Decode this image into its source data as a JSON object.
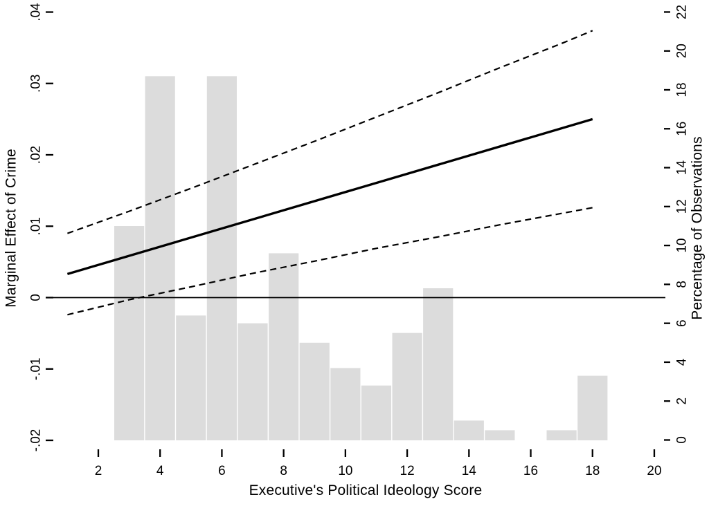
{
  "figure": {
    "background": "#ffffff",
    "bar_color": "#dcdcdc",
    "line_color": "#000000",
    "text_color": "#000000"
  },
  "chart_data": {
    "type": "line",
    "title": "",
    "xlabel": "Executive's Political Ideology Score",
    "ylabel_left": "Marginal Effect of Crime",
    "ylabel_right": "Percentage of Observations",
    "legend": "none",
    "grid": "off",
    "x_axis": {
      "tick_values": [
        2,
        4,
        6,
        8,
        10,
        12,
        14,
        16,
        18,
        20
      ],
      "tick_labels": [
        "2",
        "4",
        "6",
        "8",
        "10",
        "12",
        "14",
        "16",
        "18",
        "20"
      ],
      "range": [
        0.85,
        20.45
      ]
    },
    "y_axis_left": {
      "tick_values": [
        0.04,
        0.03,
        0.02,
        0.01,
        0,
        -0.01,
        -0.02
      ],
      "tick_labels": [
        ".04",
        ".03",
        ".02",
        ".01",
        "0",
        "-.01",
        "-.02"
      ],
      "range": [
        -0.0206,
        0.0401
      ]
    },
    "y_axis_right": {
      "tick_values": [
        22,
        20,
        18,
        16,
        14,
        12,
        10,
        8,
        6,
        4,
        2,
        0
      ],
      "tick_labels": [
        "22",
        "20",
        "18",
        "16",
        "14",
        "12",
        "10",
        "8",
        "6",
        "4",
        "2",
        "0"
      ],
      "range": [
        0,
        22
      ]
    },
    "zero_line_value": 0,
    "series": [
      {
        "name": "marginal_effect",
        "label": "Marginal Effect of Crime",
        "style": "solid",
        "axis": "left",
        "x": [
          1,
          18
        ],
        "y": [
          0.0033,
          0.025
        ]
      },
      {
        "name": "upper_95_ci",
        "label": "Upper 95% confidence bound",
        "style": "dashed",
        "axis": "left",
        "x": [
          1,
          3,
          5,
          7,
          9,
          11,
          13,
          15,
          17,
          18
        ],
        "y": [
          0.009,
          0.0121,
          0.0153,
          0.0186,
          0.0219,
          0.0253,
          0.0287,
          0.0322,
          0.0356,
          0.0374
        ]
      },
      {
        "name": "lower_95_ci",
        "label": "Lower 95% confidence bound",
        "style": "dashed",
        "axis": "left",
        "x": [
          1,
          3,
          5,
          7,
          9,
          11,
          13,
          15,
          17,
          18
        ],
        "y": [
          -0.0024,
          -0.0003,
          0.0015,
          0.0034,
          0.0051,
          0.0069,
          0.0085,
          0.0102,
          0.0118,
          0.0126
        ]
      }
    ],
    "histogram": {
      "name": "percentage_of_observations",
      "axis": "right",
      "bin_width": 1,
      "bin_centers": [
        3,
        4,
        5,
        6,
        7,
        8,
        9,
        10,
        11,
        12,
        13,
        14,
        15,
        16,
        17,
        18
      ],
      "values": [
        11.0,
        18.7,
        6.4,
        18.7,
        6.0,
        9.6,
        5.0,
        3.7,
        2.8,
        5.5,
        7.8,
        1.0,
        0.5,
        0,
        0.5,
        3.3
      ]
    }
  }
}
